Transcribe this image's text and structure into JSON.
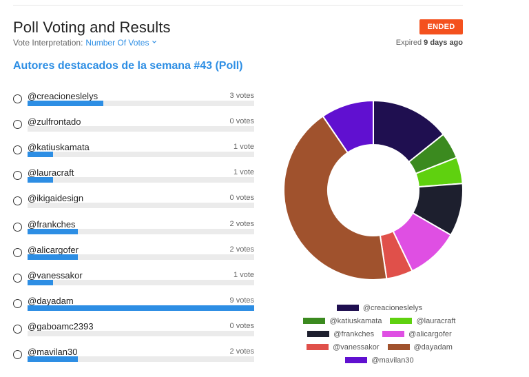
{
  "header": {
    "title": "Poll Voting and Results",
    "interp_label": "Vote Interpretation:",
    "interp_value": "Number Of Votes",
    "status": "ENDED",
    "expired_prefix": "Expired",
    "expired_value": "9 days ago"
  },
  "poll": {
    "title": "Autores destacados de la semana #43 (Poll)",
    "max_votes": 9,
    "options": [
      {
        "label": "@creacioneslelys",
        "votes": 3,
        "votes_text": "3 votes"
      },
      {
        "label": "@zulfrontado",
        "votes": 0,
        "votes_text": "0 votes"
      },
      {
        "label": "@katiuskamata",
        "votes": 1,
        "votes_text": "1 vote"
      },
      {
        "label": "@lauracraft",
        "votes": 1,
        "votes_text": "1 vote"
      },
      {
        "label": "@ikigaidesign",
        "votes": 0,
        "votes_text": "0 votes"
      },
      {
        "label": "@frankches",
        "votes": 2,
        "votes_text": "2 votes"
      },
      {
        "label": "@alicargofer",
        "votes": 2,
        "votes_text": "2 votes"
      },
      {
        "label": "@vanessakor",
        "votes": 1,
        "votes_text": "1 vote"
      },
      {
        "label": "@dayadam",
        "votes": 9,
        "votes_text": "9 votes"
      },
      {
        "label": "@gaboamc2393",
        "votes": 0,
        "votes_text": "0 votes"
      },
      {
        "label": "@mavilan30",
        "votes": 2,
        "votes_text": "2 votes"
      }
    ]
  },
  "colors": {
    "accent": "#2d8ee4",
    "ended": "#f4511e",
    "track": "#ebebeb"
  },
  "chart_data": {
    "type": "pie",
    "categories": [
      "@creacioneslelys",
      "@katiuskamata",
      "@lauracraft",
      "@frankches",
      "@alicargofer",
      "@vanessakor",
      "@dayadam",
      "@mavilan30"
    ],
    "values": [
      3,
      1,
      1,
      2,
      2,
      1,
      9,
      2
    ],
    "colors": [
      "#1f0f50",
      "#3b8a1f",
      "#5fd10f",
      "#1d1f2e",
      "#df4fe3",
      "#e0504a",
      "#a0522d",
      "#6010d0"
    ],
    "legend_rows": [
      [
        "@creacioneslelys"
      ],
      [
        "@katiuskamata",
        "@lauracraft"
      ],
      [
        "@frankches",
        "@alicargofer"
      ],
      [
        "@vanessakor",
        "@dayadam"
      ],
      [
        "@mavilan30"
      ]
    ]
  }
}
